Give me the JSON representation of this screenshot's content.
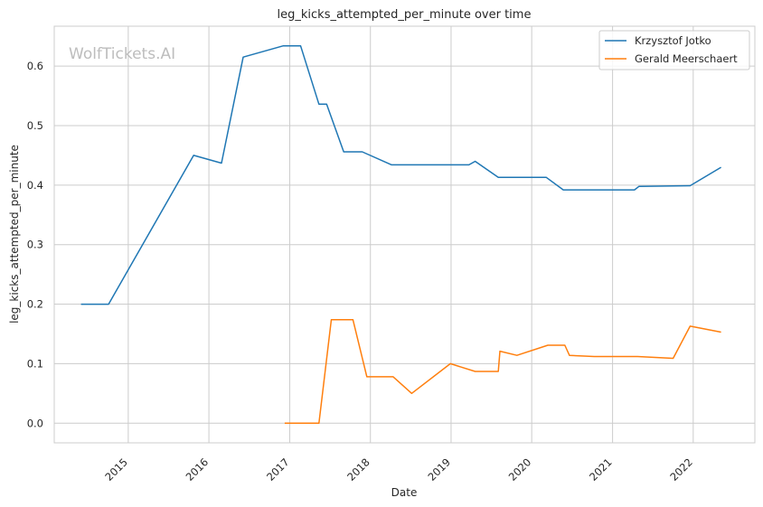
{
  "watermark": "WolfTickets.AI",
  "chart_data": {
    "type": "line",
    "title": "leg_kicks_attempted_per_minute over time",
    "xlabel": "Date",
    "ylabel": "leg_kicks_attempted_per_minute",
    "xlim": [
      "2014-01-31",
      "2022-10-07"
    ],
    "ylim": [
      -0.033,
      0.667
    ],
    "x_ticks": [
      "2015",
      "2016",
      "2017",
      "2018",
      "2019",
      "2020",
      "2021",
      "2022"
    ],
    "y_ticks": [
      "0.0",
      "0.1",
      "0.2",
      "0.3",
      "0.4",
      "0.5",
      "0.6"
    ],
    "grid": true,
    "legend_position": "top-right",
    "series": [
      {
        "name": "Krzysztof Jotko",
        "color": "#1f77b4",
        "points": [
          [
            "2014-06-01",
            0.2
          ],
          [
            "2014-10-04",
            0.2
          ],
          [
            "2015-10-24",
            0.45
          ],
          [
            "2016-02-27",
            0.437
          ],
          [
            "2016-06-04",
            0.615
          ],
          [
            "2016-12-03",
            0.634
          ],
          [
            "2017-02-19",
            0.634
          ],
          [
            "2017-05-13",
            0.536
          ],
          [
            "2017-06-17",
            0.536
          ],
          [
            "2017-09-02",
            0.456
          ],
          [
            "2017-11-25",
            0.456
          ],
          [
            "2018-04-07",
            0.434
          ],
          [
            "2019-03-23",
            0.434
          ],
          [
            "2019-04-20",
            0.44
          ],
          [
            "2019-08-03",
            0.413
          ],
          [
            "2020-03-07",
            0.413
          ],
          [
            "2020-05-23",
            0.392
          ],
          [
            "2021-04-10",
            0.392
          ],
          [
            "2021-05-01",
            0.398
          ],
          [
            "2021-12-18",
            0.399
          ],
          [
            "2022-05-07",
            0.43
          ]
        ]
      },
      {
        "name": "Gerald Meerschaert",
        "color": "#ff7f0e",
        "points": [
          [
            "2016-12-09",
            0.0
          ],
          [
            "2017-05-13",
            0.0
          ],
          [
            "2017-07-08",
            0.174
          ],
          [
            "2017-10-14",
            0.174
          ],
          [
            "2017-12-16",
            0.078
          ],
          [
            "2018-04-14",
            0.078
          ],
          [
            "2018-07-07",
            0.05
          ],
          [
            "2018-12-29",
            0.1
          ],
          [
            "2019-04-20",
            0.087
          ],
          [
            "2019-08-03",
            0.087
          ],
          [
            "2019-08-10",
            0.121
          ],
          [
            "2019-10-26",
            0.114
          ],
          [
            "2020-03-14",
            0.131
          ],
          [
            "2020-05-30",
            0.131
          ],
          [
            "2020-06-20",
            0.114
          ],
          [
            "2020-10-10",
            0.112
          ],
          [
            "2021-04-24",
            0.112
          ],
          [
            "2021-10-02",
            0.109
          ],
          [
            "2021-12-18",
            0.163
          ],
          [
            "2022-05-07",
            0.153
          ]
        ]
      }
    ]
  }
}
